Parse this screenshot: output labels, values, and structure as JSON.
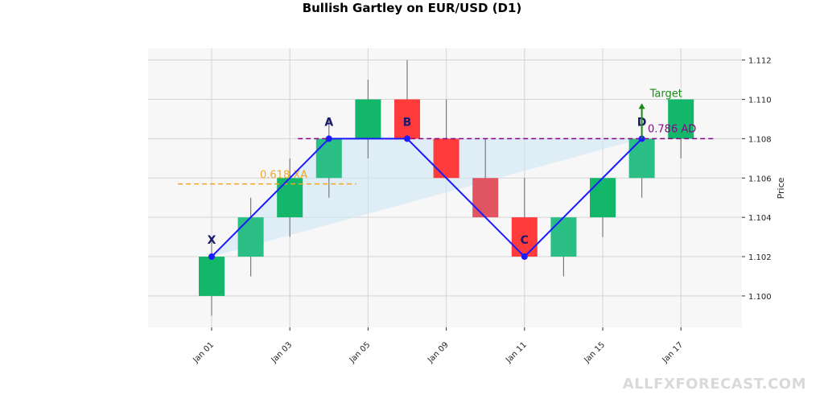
{
  "chart_data": {
    "type": "candlestick",
    "title": "Bullish Gartley on EUR/USD (D1)",
    "ylabel": "Price",
    "xlabel": "",
    "ylim": [
      1.0984,
      1.1126
    ],
    "grid": true,
    "candle_colors": {
      "up": "#12b76a",
      "down": "#ff3b3b",
      "up_alt": "#2bbf86",
      "down_alt": "#e05560"
    },
    "categories": [
      "Jan 01",
      "Jan 02",
      "Jan 03",
      "Jan 04",
      "Jan 05",
      "Jan 08",
      "Jan 09",
      "Jan 10",
      "Jan 11",
      "Jan 12",
      "Jan 15",
      "Jan 16",
      "Jan 17"
    ],
    "x_tick_labels": [
      "Jan 01",
      "Jan 03",
      "Jan 05",
      "Jan 09",
      "Jan 11",
      "Jan 15",
      "Jan 17"
    ],
    "y_ticks": [
      "1.100",
      "1.102",
      "1.104",
      "1.106",
      "1.108",
      "1.110",
      "1.112"
    ],
    "candles": [
      {
        "date": "Jan 01",
        "open": 1.1,
        "high": 1.103,
        "low": 1.099,
        "close": 1.102
      },
      {
        "date": "Jan 02",
        "open": 1.102,
        "high": 1.105,
        "low": 1.101,
        "close": 1.104
      },
      {
        "date": "Jan 03",
        "open": 1.104,
        "high": 1.107,
        "low": 1.103,
        "close": 1.106
      },
      {
        "date": "Jan 04",
        "open": 1.106,
        "high": 1.109,
        "low": 1.105,
        "close": 1.108
      },
      {
        "date": "Jan 05",
        "open": 1.108,
        "high": 1.111,
        "low": 1.107,
        "close": 1.11
      },
      {
        "date": "Jan 08",
        "open": 1.11,
        "high": 1.112,
        "low": 1.108,
        "close": 1.108
      },
      {
        "date": "Jan 09",
        "open": 1.108,
        "high": 1.11,
        "low": 1.106,
        "close": 1.106
      },
      {
        "date": "Jan 10",
        "open": 1.106,
        "high": 1.108,
        "low": 1.104,
        "close": 1.104
      },
      {
        "date": "Jan 11",
        "open": 1.104,
        "high": 1.106,
        "low": 1.102,
        "close": 1.102
      },
      {
        "date": "Jan 12",
        "open": 1.102,
        "high": 1.104,
        "low": 1.101,
        "close": 1.104
      },
      {
        "date": "Jan 15",
        "open": 1.104,
        "high": 1.106,
        "low": 1.103,
        "close": 1.106
      },
      {
        "date": "Jan 16",
        "open": 1.106,
        "high": 1.108,
        "low": 1.105,
        "close": 1.108
      },
      {
        "date": "Jan 17",
        "open": 1.108,
        "high": 1.11,
        "low": 1.107,
        "close": 1.11
      }
    ],
    "pattern_points": [
      {
        "label": "X",
        "date": "Jan 01",
        "price": 1.102
      },
      {
        "label": "A",
        "date": "Jan 04",
        "price": 1.108
      },
      {
        "label": "B",
        "date": "Jan 08",
        "price": 1.108
      },
      {
        "label": "C",
        "date": "Jan 11",
        "price": 1.102
      },
      {
        "label": "D",
        "date": "Jan 16",
        "price": 1.108
      }
    ],
    "fib_levels": [
      {
        "label": "0.618 XA",
        "price": 1.1057,
        "from": "Jan 01",
        "to": "Jan 05",
        "color": "#f5a623"
      },
      {
        "label": "0.786 AD",
        "price": 1.108,
        "from": "Jan 03",
        "to": "Jan 17",
        "color": "#8b008b"
      }
    ],
    "target": {
      "label": "Target",
      "date": "Jan 16",
      "from_price": 1.108,
      "to_price": 1.1098,
      "color": "#1a8a1a"
    }
  },
  "watermark": "ALLFXFORECAST.COM"
}
